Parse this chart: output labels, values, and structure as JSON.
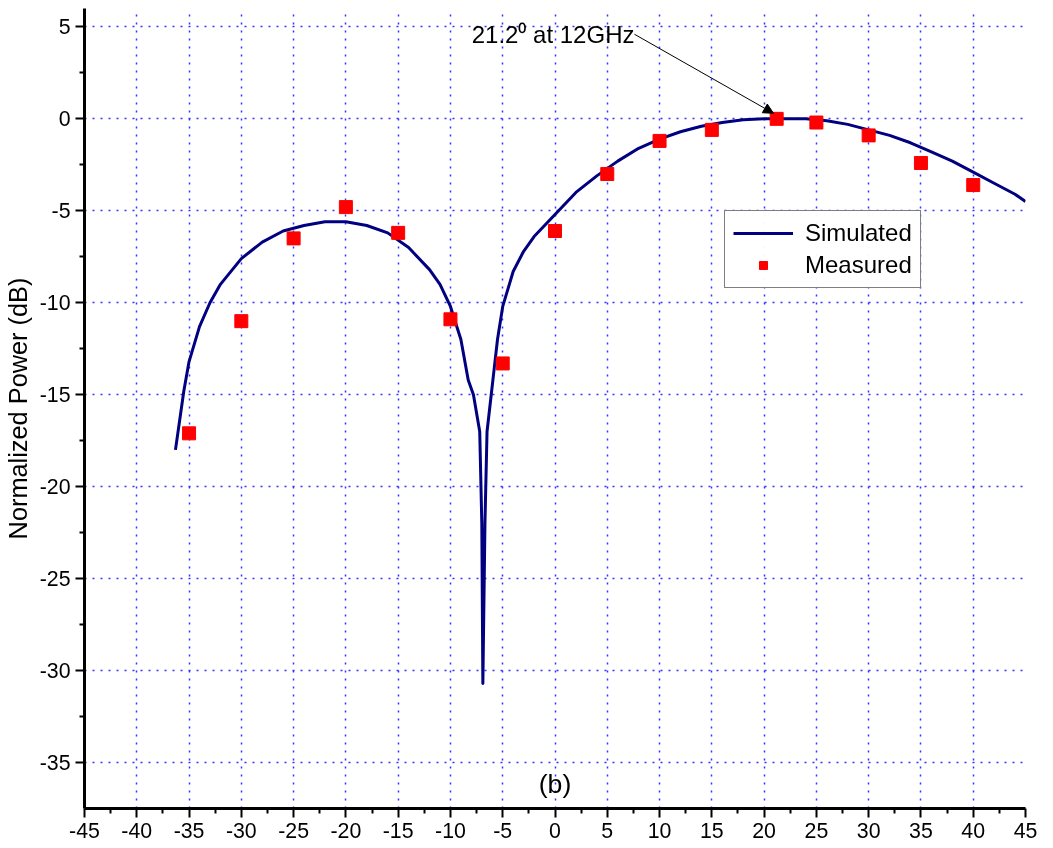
{
  "chart_data": {
    "type": "line",
    "ylabel": "Normalized Power (dB)",
    "xlim": [
      -45,
      45
    ],
    "xticks": [
      -45,
      -40,
      -35,
      -30,
      -25,
      -20,
      -15,
      -10,
      -5,
      0,
      5,
      10,
      15,
      20,
      25,
      30,
      35,
      40,
      45
    ],
    "ylim": [
      -37.5,
      6
    ],
    "yticks": [
      -35,
      -30,
      -25,
      -20,
      -15,
      -10,
      -5,
      0,
      5
    ],
    "grid": true,
    "legend": "right",
    "series": [
      {
        "name": "Simulated",
        "color": "#000080",
        "line_style": "solid",
        "x": [
          -36.3,
          -36.0,
          -35.5,
          -35,
          -34,
          -33,
          -32,
          -30,
          -28,
          -26,
          -24,
          -22,
          -20,
          -18,
          -16,
          -14,
          -12,
          -11,
          -10,
          -9,
          -8.3,
          -7.8,
          -7.2,
          -7.0,
          -6.9,
          -6.7,
          -6.5,
          -6.1,
          -5.9,
          -5.5,
          -5,
          -4,
          -3,
          -2,
          -1,
          0,
          2,
          4,
          6,
          8,
          10,
          12,
          14,
          16,
          18,
          20,
          22,
          24,
          26,
          28,
          30,
          32,
          34,
          36,
          38,
          40,
          42,
          44,
          45
        ],
        "values": [
          -18.0,
          -16.8,
          -14.8,
          -13.2,
          -11.3,
          -10.0,
          -9.0,
          -7.6,
          -6.7,
          -6.1,
          -5.8,
          -5.6,
          -5.6,
          -5.8,
          -6.2,
          -7.0,
          -8.2,
          -9.0,
          -10.2,
          -12.0,
          -14.2,
          -15.0,
          -17.0,
          -22,
          -30.7,
          -22,
          -17,
          -15.0,
          -14.0,
          -12.0,
          -10.2,
          -8.3,
          -7.2,
          -6.4,
          -5.8,
          -5.2,
          -4.0,
          -3.1,
          -2.3,
          -1.6,
          -1.1,
          -0.7,
          -0.4,
          -0.2,
          -0.05,
          0,
          0,
          0,
          -0.1,
          -0.3,
          -0.6,
          -0.9,
          -1.3,
          -1.8,
          -2.3,
          -2.9,
          -3.5,
          -4.1,
          -4.5
        ]
      },
      {
        "name": "Measured",
        "type": "scatter",
        "color": "#ff0000",
        "marker": "square",
        "x": [
          -35,
          -30,
          -25,
          -20,
          -15,
          -10,
          -5,
          0,
          5,
          10,
          15,
          21.2,
          25,
          30,
          35,
          40
        ],
        "values": [
          -17.1,
          -11.0,
          -6.5,
          -4.8,
          -6.2,
          -10.9,
          -13.3,
          -6.1,
          -3.0,
          -1.2,
          -0.6,
          0,
          -0.2,
          -0.9,
          -2.4,
          -3.6
        ]
      }
    ],
    "annotations": [
      {
        "text": "21.2⁰ at 12GHz",
        "x": 21.2,
        "y": 0
      },
      "(b)"
    ]
  }
}
